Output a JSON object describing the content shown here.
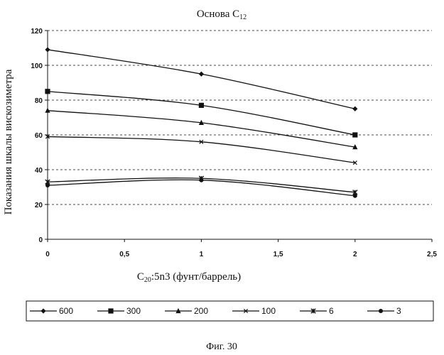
{
  "chart_data": {
    "type": "line",
    "title_base": "Основа C",
    "title_sub": "12",
    "ylabel": "Показания шкалы вискозиметра",
    "xlabel_base": "C",
    "xlabel_sub": "20",
    "xlabel_rest": ":5n3 (фунт/баррель)",
    "xlim": [
      0,
      2.5
    ],
    "ylim": [
      0,
      120
    ],
    "x_ticks": [
      "0",
      "0,5",
      "1",
      "1,5",
      "2",
      "2,5"
    ],
    "y_ticks": [
      "0",
      "20",
      "40",
      "60",
      "80",
      "100",
      "120"
    ],
    "grid": "horizontal dashed",
    "legend_position": "bottom",
    "x": [
      0,
      1,
      2
    ],
    "series": [
      {
        "name": "600",
        "marker": "diamond",
        "values": [
          109,
          95,
          75
        ]
      },
      {
        "name": "300",
        "marker": "square",
        "values": [
          85,
          77,
          60
        ]
      },
      {
        "name": "200",
        "marker": "triangle",
        "values": [
          74,
          67,
          53
        ]
      },
      {
        "name": "100",
        "marker": "x",
        "values": [
          59,
          56,
          44
        ]
      },
      {
        "name": "6",
        "marker": "asterisk",
        "values": [
          33,
          35,
          27
        ]
      },
      {
        "name": "3",
        "marker": "circle",
        "values": [
          31,
          34,
          25
        ]
      }
    ]
  },
  "caption": "Фиг. 30"
}
